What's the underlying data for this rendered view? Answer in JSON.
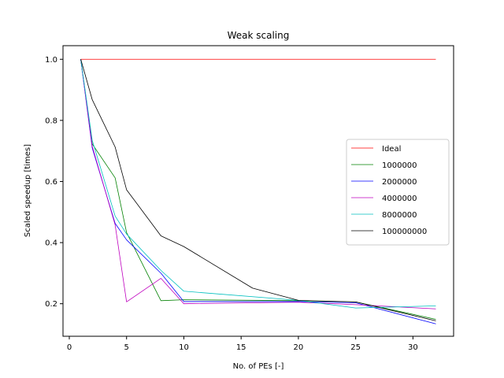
{
  "chart_data": {
    "type": "line",
    "title": "Weak scaling",
    "xlabel": "No. of PEs [-]",
    "ylabel": "Scaled speedup [times]",
    "xlim": [
      -0.55,
      33.55
    ],
    "ylim": [
      0.0935,
      1.0445
    ],
    "xticks": [
      0,
      5,
      10,
      15,
      20,
      25,
      30
    ],
    "yticks": [
      0.2,
      0.4,
      0.6,
      0.8,
      1.0
    ],
    "xtick_labels": [
      "0",
      "5",
      "10",
      "15",
      "20",
      "25",
      "30"
    ],
    "ytick_labels": [
      "0.2",
      "0.4",
      "0.6",
      "0.8",
      "1.0"
    ],
    "legend_position": "center-right",
    "series": [
      {
        "name": "Ideal",
        "color": "#ff0000",
        "x": [
          1,
          32
        ],
        "y": [
          1.0,
          1.0
        ]
      },
      {
        "name": "1000000",
        "color": "#008000",
        "x": [
          1,
          2,
          4,
          5,
          8,
          10,
          20,
          25,
          32
        ],
        "y": [
          1.0,
          0.723,
          0.612,
          0.433,
          0.21,
          0.213,
          0.21,
          0.206,
          0.149
        ]
      },
      {
        "name": "2000000",
        "color": "#0000ff",
        "x": [
          1,
          2,
          4,
          5,
          8,
          10,
          20,
          25,
          32
        ],
        "y": [
          1.0,
          0.71,
          0.463,
          0.409,
          0.3,
          0.207,
          0.207,
          0.203,
          0.134
        ]
      },
      {
        "name": "4000000",
        "color": "#bf00bf",
        "x": [
          1,
          2,
          4,
          5,
          8,
          10,
          20,
          25,
          32
        ],
        "y": [
          1.0,
          0.716,
          0.458,
          0.206,
          0.283,
          0.2,
          0.205,
          0.197,
          0.183
        ]
      },
      {
        "name": "8000000",
        "color": "#00bfbf",
        "x": [
          1,
          2,
          4,
          5,
          8,
          10,
          20,
          25,
          32
        ],
        "y": [
          1.0,
          0.735,
          0.487,
          0.428,
          0.309,
          0.241,
          0.211,
          0.186,
          0.193
        ]
      },
      {
        "name": "100000000",
        "color": "#000000",
        "x": [
          1,
          2,
          4,
          5,
          8,
          10,
          16,
          20,
          25,
          32
        ],
        "y": [
          1.0,
          0.868,
          0.713,
          0.573,
          0.422,
          0.387,
          0.251,
          0.211,
          0.206,
          0.144
        ]
      }
    ]
  }
}
